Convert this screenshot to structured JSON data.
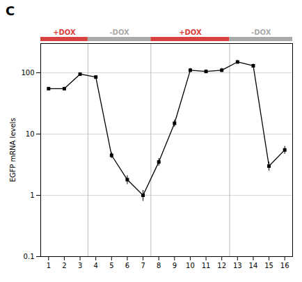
{
  "chart_data": {
    "type": "line",
    "title": "C",
    "y_label": "EGFP mRNA levels",
    "x": [
      1,
      2,
      3,
      4,
      5,
      6,
      7,
      8,
      9,
      10,
      11,
      12,
      13,
      14,
      15,
      16
    ],
    "series": [
      {
        "color": "#000000",
        "marker": "square",
        "line_style": "solid",
        "values": [
          55,
          55,
          95,
          85,
          4.5,
          1.8,
          1.0,
          3.5,
          15,
          110,
          105,
          110,
          150,
          130,
          3.0,
          5.5
        ],
        "errors": [
          3,
          3,
          5,
          5,
          0.5,
          0.3,
          0.2,
          0.5,
          2,
          8,
          7,
          8,
          10,
          9,
          0.5,
          0.8
        ]
      }
    ],
    "log": "y",
    "xlim": [
      0.5,
      16.5
    ],
    "xticks": [
      1,
      2,
      3,
      4,
      5,
      6,
      7,
      8,
      9,
      10,
      11,
      12,
      13,
      14,
      15,
      16
    ],
    "ylim": [
      0.1,
      300
    ],
    "yticks": [
      0.1,
      1,
      10,
      100
    ],
    "grid": true,
    "annotations": [
      {
        "x_start": 0.5,
        "x_end": 3.5,
        "text": "+DOX",
        "color": "#d94040"
      },
      {
        "x_start": 3.5,
        "x_end": 7.5,
        "text": "-DOX",
        "color": "#aaaaaa"
      },
      {
        "x_start": 7.5,
        "x_end": 12.5,
        "text": "+DOX",
        "color": "#d94040"
      },
      {
        "x_start": 12.5,
        "x_end": 16.5,
        "text": "-DOX",
        "color": "#aaaaaa"
      }
    ]
  }
}
